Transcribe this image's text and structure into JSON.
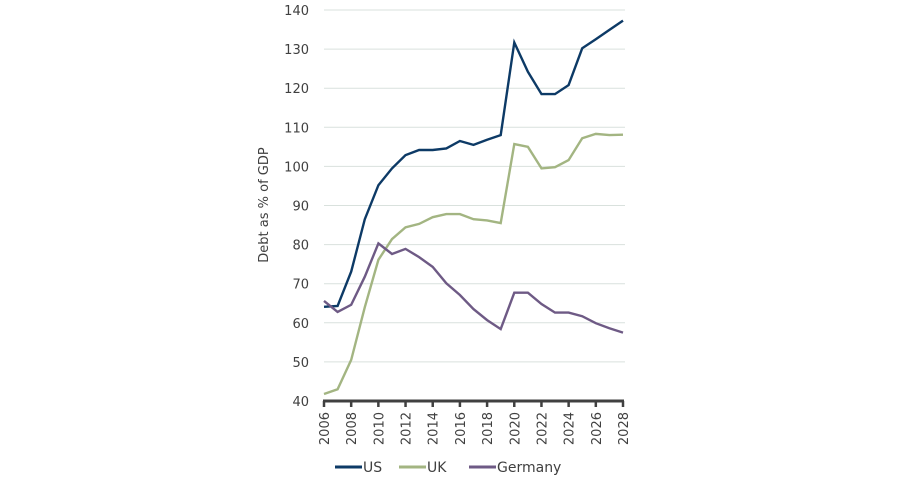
{
  "chart_data": {
    "type": "line",
    "title": "",
    "xlabel": "",
    "ylabel": "Debt as % of GDP",
    "ylim": [
      40,
      140
    ],
    "yticks": [
      40,
      50,
      60,
      70,
      80,
      90,
      100,
      110,
      120,
      130,
      140
    ],
    "xlim": [
      2006,
      2028
    ],
    "xticks": [
      2006,
      2008,
      2010,
      2012,
      2014,
      2016,
      2018,
      2020,
      2022,
      2024,
      2026,
      2028
    ],
    "grid": "horizontal",
    "legend_position": "bottom",
    "x": [
      2006,
      2007,
      2008,
      2009,
      2010,
      2011,
      2012,
      2013,
      2014,
      2015,
      2016,
      2017,
      2018,
      2019,
      2020,
      2021,
      2022,
      2023,
      2024,
      2025,
      2026,
      2027,
      2028
    ],
    "series": [
      {
        "name": "US",
        "color": "#0d3a66",
        "values": [
          64.1,
          64.3,
          73.1,
          86.5,
          95.2,
          99.5,
          102.9,
          104.2,
          104.2,
          104.6,
          106.5,
          105.5,
          106.8,
          108.0,
          131.7,
          124.2,
          118.5,
          118.5,
          120.8,
          130.2,
          132.5,
          134.9,
          137.3
        ]
      },
      {
        "name": "UK",
        "color": "#a3b582",
        "values": [
          41.8,
          43.0,
          50.5,
          64.0,
          76.1,
          81.4,
          84.4,
          85.3,
          87.0,
          87.8,
          87.8,
          86.5,
          86.2,
          85.5,
          105.7,
          105.0,
          99.5,
          99.8,
          101.6,
          107.2,
          108.3,
          108.0,
          108.1
        ]
      },
      {
        "name": "Germany",
        "color": "#6e5a85",
        "values": [
          65.6,
          62.8,
          64.6,
          71.8,
          80.3,
          77.6,
          78.9,
          76.8,
          74.3,
          70.1,
          67.1,
          63.5,
          60.7,
          58.4,
          67.7,
          67.7,
          64.8,
          62.6,
          62.6,
          61.7,
          59.9,
          58.6,
          57.5
        ]
      }
    ]
  },
  "style": {
    "grid_color": "#d9e1dd",
    "axis_color": "#404040",
    "text_color": "#404040"
  }
}
